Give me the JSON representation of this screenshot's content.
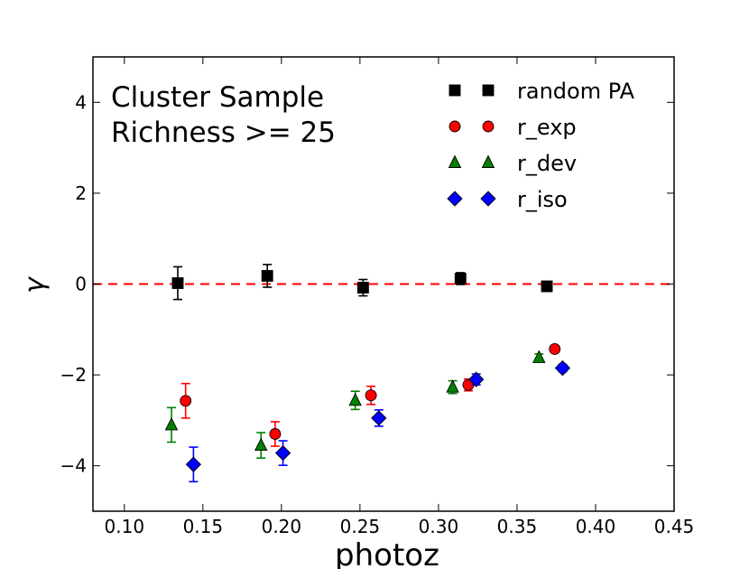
{
  "chart_data": {
    "type": "scatter",
    "title": "",
    "xlabel": "photoz",
    "ylabel": "γ",
    "xlim": [
      0.08,
      0.45
    ],
    "ylim": [
      -5,
      5
    ],
    "xticks": [
      "0.10",
      "0.15",
      "0.20",
      "0.25",
      "0.30",
      "0.35",
      "0.40",
      "0.45"
    ],
    "xtick_values": [
      0.1,
      0.15,
      0.2,
      0.25,
      0.3,
      0.35,
      0.4,
      0.45
    ],
    "yticks": [
      "−4",
      "−2",
      "0",
      "2",
      "4"
    ],
    "ytick_values": [
      -4,
      -2,
      0,
      2,
      4
    ],
    "grid": false,
    "legend_position": "top-right",
    "reference_line": {
      "y": 0,
      "color": "#ff0000",
      "style": "dashed"
    },
    "annotations": [
      "Cluster Sample",
      "Richness >= 25"
    ],
    "series": [
      {
        "name": "random PA",
        "marker": "square",
        "color": "#000000",
        "x": [
          0.134,
          0.191,
          0.252,
          0.314,
          0.369
        ],
        "y": [
          0.02,
          0.18,
          -0.08,
          0.12,
          -0.05
        ],
        "err": [
          0.36,
          0.25,
          0.18,
          0.13,
          0.07
        ]
      },
      {
        "name": "r_exp",
        "marker": "circle",
        "color": "#ff0000",
        "x": [
          0.139,
          0.196,
          0.257,
          0.319,
          0.374
        ],
        "y": [
          -2.57,
          -3.3,
          -2.45,
          -2.22,
          -1.43
        ],
        "err": [
          0.38,
          0.27,
          0.2,
          0.13,
          0.07
        ]
      },
      {
        "name": "r_dev",
        "marker": "triangle",
        "color": "#008000",
        "x": [
          0.13,
          0.187,
          0.247,
          0.309,
          0.364
        ],
        "y": [
          -3.1,
          -3.55,
          -2.56,
          -2.27,
          -1.62
        ],
        "err": [
          0.38,
          0.28,
          0.2,
          0.14,
          0.08
        ]
      },
      {
        "name": "r_iso",
        "marker": "diamond",
        "color": "#0000ff",
        "x": [
          0.144,
          0.201,
          0.262,
          0.324,
          0.379
        ],
        "y": [
          -3.97,
          -3.72,
          -2.95,
          -2.1,
          -1.85
        ],
        "err": [
          0.38,
          0.27,
          0.18,
          0.12,
          0.08
        ]
      }
    ]
  }
}
